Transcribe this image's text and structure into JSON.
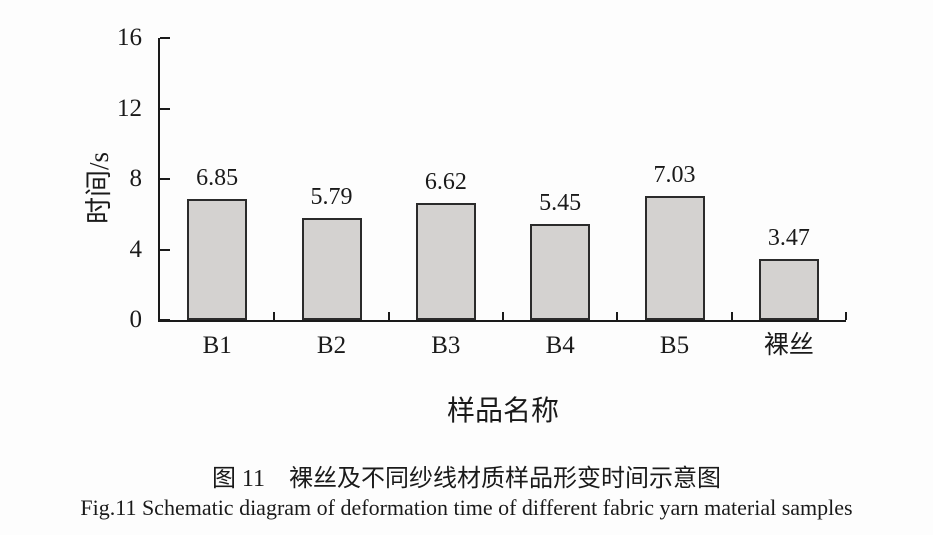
{
  "chart_data": {
    "type": "bar",
    "categories": [
      "B1",
      "B2",
      "B3",
      "B4",
      "B5",
      "裸丝"
    ],
    "values": [
      6.85,
      5.79,
      6.62,
      5.45,
      7.03,
      3.47
    ],
    "title": "",
    "xlabel": "样品名称",
    "ylabel": "时间/s",
    "ylim": [
      0,
      16
    ],
    "yticks": [
      0,
      4,
      8,
      12,
      16
    ],
    "grid": false,
    "legend": "none",
    "bar_fill": "#d4d2d0",
    "bar_border": "#2b2b2b",
    "axis_color": "#1a1a1a"
  },
  "caption": {
    "zh": "图 11　裸丝及不同纱线材质样品形变时间示意图",
    "en": "Fig.11 Schematic diagram of deformation time of different fabric yarn material samples"
  }
}
